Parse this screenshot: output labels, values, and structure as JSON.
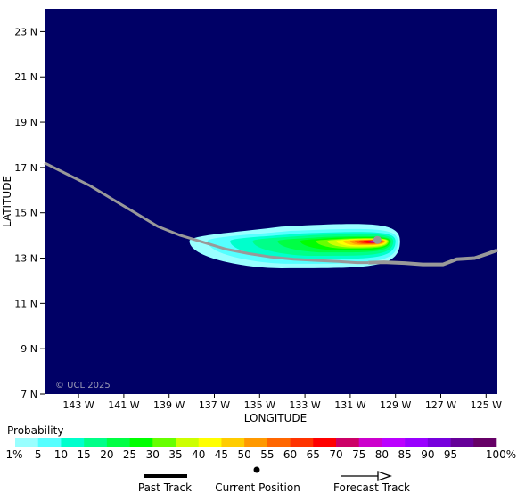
{
  "map": {
    "watermark": "© UCL 2025",
    "xlabel": "LONGITUDE",
    "ylabel": "LATITUDE",
    "x_range": [
      -144.5,
      -124.5
    ],
    "y_range": [
      7,
      24
    ],
    "x_ticks": [
      {
        "value": -143,
        "label": "143 W"
      },
      {
        "value": -141,
        "label": "141 W"
      },
      {
        "value": -139,
        "label": "139 W"
      },
      {
        "value": -137,
        "label": "137 W"
      },
      {
        "value": -135,
        "label": "135 W"
      },
      {
        "value": -133,
        "label": "133 W"
      },
      {
        "value": -131,
        "label": "131 W"
      },
      {
        "value": -129,
        "label": "129 W"
      },
      {
        "value": -127,
        "label": "127 W"
      },
      {
        "value": -125,
        "label": "125 W"
      }
    ],
    "y_ticks": [
      {
        "value": 23,
        "label": "23 N"
      },
      {
        "value": 21,
        "label": "21 N"
      },
      {
        "value": 19,
        "label": "19 N"
      },
      {
        "value": 17,
        "label": "17 N"
      },
      {
        "value": 15,
        "label": "15 N"
      },
      {
        "value": 13,
        "label": "13 N"
      },
      {
        "value": 11,
        "label": "11 N"
      },
      {
        "value": 9,
        "label": "9 N"
      },
      {
        "value": 7,
        "label": "7 N"
      }
    ],
    "ocean_color": "#000066",
    "track_color": "#999999",
    "past_track": [
      [
        -144.5,
        17.2
      ],
      [
        -143.5,
        16.7
      ],
      [
        -142.5,
        16.2
      ],
      [
        -141.5,
        15.6
      ],
      [
        -140.5,
        15.0
      ],
      [
        -139.5,
        14.4
      ],
      [
        -138.5,
        14.0
      ],
      [
        -137.5,
        13.7
      ],
      [
        -136.5,
        13.4
      ],
      [
        -135.5,
        13.2
      ],
      [
        -134.5,
        13.05
      ],
      [
        -133.5,
        12.95
      ],
      [
        -132.5,
        12.9
      ],
      [
        -131.5,
        12.85
      ],
      [
        -130.7,
        12.8
      ],
      [
        -130.2,
        12.8
      ]
    ],
    "forecast_track": [
      [
        -130.2,
        12.8
      ],
      [
        -129.5,
        12.82
      ],
      [
        -128.6,
        12.78
      ],
      [
        -127.8,
        12.72
      ],
      [
        -126.9,
        12.72
      ],
      [
        -126.3,
        12.95
      ],
      [
        -125.5,
        13.0
      ],
      [
        -124.9,
        13.2
      ],
      [
        -124.5,
        13.35
      ]
    ],
    "current_position": [
      -129.8,
      13.8
    ],
    "probability_field": {
      "center": [
        -130.0,
        13.75
      ],
      "levels": [
        {
          "p": 1,
          "west": -138.1,
          "east": -128.8,
          "north": 14.6,
          "south": 12.55
        },
        {
          "p": 5,
          "west": -137.3,
          "east": -128.9,
          "north": 14.35,
          "south": 12.75
        },
        {
          "p": 10,
          "west": -136.3,
          "east": -129.0,
          "north": 14.2,
          "south": 12.95
        },
        {
          "p": 15,
          "west": -135.3,
          "east": -129.1,
          "north": 14.1,
          "south": 13.1
        },
        {
          "p": 20,
          "west": -134.2,
          "east": -129.2,
          "north": 14.0,
          "south": 13.25
        },
        {
          "p": 25,
          "west": -133.2,
          "east": -129.25,
          "north": 13.95,
          "south": 13.35
        },
        {
          "p": 30,
          "west": -132.5,
          "east": -129.3,
          "north": 13.9,
          "south": 13.42
        },
        {
          "p": 35,
          "west": -132.0,
          "east": -129.35,
          "north": 13.88,
          "south": 13.47
        },
        {
          "p": 40,
          "west": -131.6,
          "east": -129.4,
          "north": 13.86,
          "south": 13.52
        },
        {
          "p": 45,
          "west": -131.3,
          "east": -129.45,
          "north": 13.84,
          "south": 13.56
        },
        {
          "p": 50,
          "west": -131.0,
          "east": -129.5,
          "north": 13.82,
          "south": 13.59
        },
        {
          "p": 55,
          "west": -130.8,
          "east": -129.55,
          "north": 13.8,
          "south": 13.62
        },
        {
          "p": 60,
          "west": -130.6,
          "east": -129.6,
          "north": 13.79,
          "south": 13.64
        },
        {
          "p": 65,
          "west": -130.4,
          "east": -129.6,
          "north": 13.78,
          "south": 13.66
        },
        {
          "p": 70,
          "west": -130.2,
          "east": -129.65,
          "north": 13.77,
          "south": 13.67
        },
        {
          "p": 75,
          "west": -130.1,
          "east": -129.7,
          "north": 13.76,
          "south": 13.68
        },
        {
          "p": 80,
          "west": -130.0,
          "east": -129.75,
          "north": 13.75,
          "south": 13.69
        }
      ]
    }
  },
  "colorbar": {
    "title": "Probability",
    "colors": [
      "#99ffff",
      "#55ffff",
      "#00ffcc",
      "#00ff88",
      "#00ff44",
      "#00ff00",
      "#66ff00",
      "#ccff00",
      "#ffff00",
      "#ffcc00",
      "#ff9900",
      "#ff6600",
      "#ff3300",
      "#ff0000",
      "#cc0066",
      "#cc00cc",
      "#bb00ff",
      "#9900ff",
      "#7700dd",
      "#660099",
      "#660066"
    ],
    "labels": [
      "1%",
      "5",
      "10",
      "15",
      "20",
      "25",
      "30",
      "35",
      "40",
      "45",
      "50",
      "55",
      "60",
      "65",
      "70",
      "75",
      "80",
      "85",
      "90",
      "95",
      "100%"
    ]
  },
  "legend": {
    "past_track": "Past Track",
    "current_position": "Current Position",
    "forecast_track": "Forecast Track"
  }
}
